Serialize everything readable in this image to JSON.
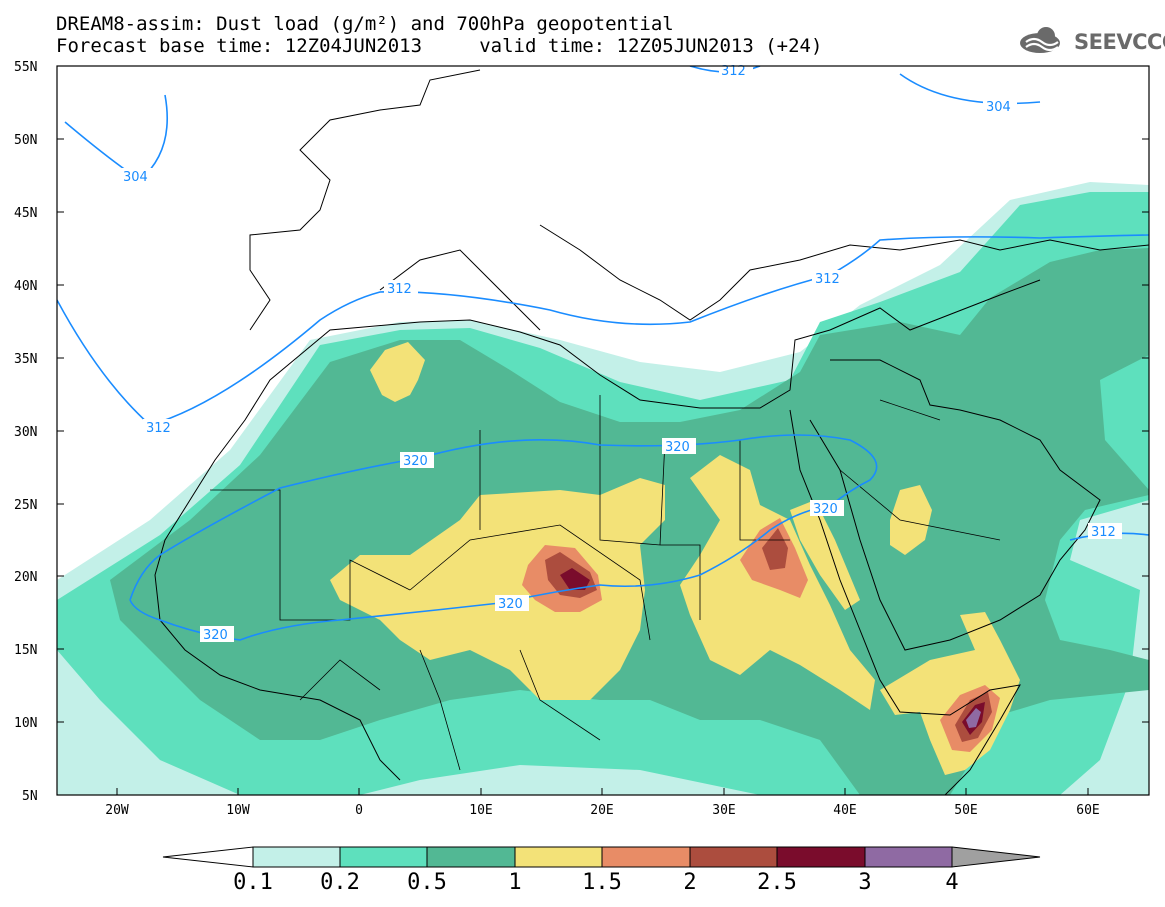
{
  "title": {
    "line1": "DREAM8-assim: Dust load (g/m²) and 700hPa geopotential",
    "line2": "Forecast base time: 12Z04JUN2013     valid time: 12Z05JUN2013 (+24)"
  },
  "logo": {
    "text": "SEEVCCC",
    "icon": "cloud-icon"
  },
  "axes": {
    "lat_labels": [
      "55N",
      "50N",
      "45N",
      "40N",
      "35N",
      "30N",
      "25N",
      "20N",
      "15N",
      "10N",
      "5N"
    ],
    "lon_labels": [
      "20W",
      "10W",
      "0",
      "10E",
      "20E",
      "30E",
      "40E",
      "50E",
      "60E"
    ]
  },
  "contours": {
    "labels": [
      "312",
      "304",
      "304",
      "312",
      "312",
      "312",
      "320",
      "320",
      "320",
      "320",
      "320",
      "312"
    ],
    "color": "#1a8cff"
  },
  "colorbar": {
    "ticks": [
      "0.1",
      "0.2",
      "0.5",
      "1",
      "1.5",
      "2",
      "2.5",
      "3",
      "4"
    ],
    "colors": [
      "#c3f0e8",
      "#5ee0bd",
      "#52b894",
      "#f3e278",
      "#e88c66",
      "#ac4d3e",
      "#7a0c2c",
      "#8f6aa3",
      "#a0a0a0"
    ]
  },
  "palette": {
    "c01": "#c3f0e8",
    "c02": "#5ee0bd",
    "c05": "#52b894",
    "c1": "#f3e278",
    "c15": "#e88c66",
    "c2": "#ac4d3e",
    "c25": "#7a0c2c",
    "c3": "#8f6aa3"
  }
}
